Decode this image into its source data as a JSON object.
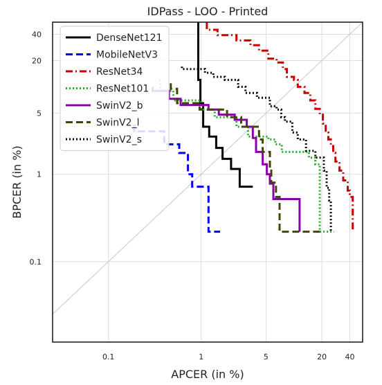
{
  "chart_data": {
    "type": "line",
    "title": "IDPass - LOO - Printed",
    "xlabel": "APCER (in %)",
    "ylabel": "BPCER (in %)",
    "xscale": "log",
    "yscale": "log",
    "xlim": [
      0.025,
      55
    ],
    "ylim": [
      0.012,
      55
    ],
    "xticks": [
      0.1,
      1,
      5,
      20,
      40
    ],
    "xtick_labels": [
      "0.1",
      "1",
      "5",
      "20",
      "40"
    ],
    "yticks": [
      0.1,
      1,
      5,
      20,
      40
    ],
    "ytick_labels": [
      "0.1",
      "1",
      "5",
      "20",
      "40"
    ],
    "grid": true,
    "diagonal_reference": true,
    "legend": "top-left",
    "series": [
      {
        "name": "DenseNet121",
        "color": "#000000",
        "dash": "solid",
        "points": [
          [
            0.93,
            55
          ],
          [
            0.93,
            20
          ],
          [
            0.93,
            12
          ],
          [
            0.98,
            12
          ],
          [
            0.98,
            6.5
          ],
          [
            1.05,
            6.5
          ],
          [
            1.05,
            3.5
          ],
          [
            1.22,
            3.5
          ],
          [
            1.22,
            2.7
          ],
          [
            1.45,
            2.7
          ],
          [
            1.45,
            2.0
          ],
          [
            1.7,
            2.0
          ],
          [
            1.7,
            1.5
          ],
          [
            2.1,
            1.5
          ],
          [
            2.1,
            1.15
          ],
          [
            2.6,
            1.15
          ],
          [
            2.6,
            0.72
          ],
          [
            3.6,
            0.72
          ]
        ]
      },
      {
        "name": "MobileNetV3",
        "color": "#0000ee",
        "dash": "dashed",
        "points": [
          [
            0.19,
            3.7
          ],
          [
            0.19,
            3.1
          ],
          [
            0.4,
            3.1
          ],
          [
            0.4,
            2.2
          ],
          [
            0.58,
            2.2
          ],
          [
            0.58,
            1.75
          ],
          [
            0.72,
            1.75
          ],
          [
            0.72,
            1.0
          ],
          [
            0.8,
            1.0
          ],
          [
            0.8,
            0.72
          ],
          [
            1.2,
            0.72
          ],
          [
            1.2,
            0.22
          ],
          [
            1.6,
            0.22
          ]
        ]
      },
      {
        "name": "ResNet34",
        "color": "#cc0000",
        "dash": "dashdot",
        "points": [
          [
            1.15,
            55
          ],
          [
            1.15,
            45
          ],
          [
            1.5,
            45
          ],
          [
            1.5,
            39
          ],
          [
            2.4,
            39
          ],
          [
            2.4,
            34
          ],
          [
            3.4,
            34
          ],
          [
            3.4,
            30
          ],
          [
            4.2,
            30
          ],
          [
            4.2,
            26
          ],
          [
            5.3,
            26
          ],
          [
            5.3,
            21
          ],
          [
            6.5,
            21
          ],
          [
            6.5,
            19
          ],
          [
            7.6,
            19
          ],
          [
            7.6,
            16
          ],
          [
            8.4,
            16
          ],
          [
            8.4,
            13
          ],
          [
            10,
            13
          ],
          [
            10,
            12
          ],
          [
            11,
            12
          ],
          [
            11,
            10
          ],
          [
            13,
            10
          ],
          [
            13,
            8.5
          ],
          [
            15,
            8.5
          ],
          [
            15,
            7
          ],
          [
            17,
            7
          ],
          [
            17,
            5.6
          ],
          [
            19,
            5.6
          ],
          [
            19,
            4.8
          ],
          [
            20.5,
            4.8
          ],
          [
            20.5,
            3.8
          ],
          [
            22,
            3.8
          ],
          [
            22,
            3.0
          ],
          [
            23.5,
            3.0
          ],
          [
            23.5,
            2.5
          ],
          [
            25,
            2.5
          ],
          [
            25,
            2.1
          ],
          [
            26.5,
            2.1
          ],
          [
            26.5,
            1.75
          ],
          [
            28,
            1.75
          ],
          [
            28,
            1.4
          ],
          [
            31,
            1.4
          ],
          [
            31,
            1.1
          ],
          [
            34,
            1.1
          ],
          [
            34,
            0.85
          ],
          [
            38,
            0.85
          ],
          [
            38,
            0.65
          ],
          [
            40,
            0.65
          ],
          [
            40,
            0.55
          ],
          [
            43,
            0.55
          ],
          [
            43,
            0.22
          ]
        ]
      },
      {
        "name": "ResNet101",
        "color": "#22aa22",
        "dash": "dotted",
        "points": [
          [
            0.36,
            12
          ],
          [
            0.36,
            9
          ],
          [
            0.5,
            9
          ],
          [
            0.5,
            7
          ],
          [
            1.0,
            7
          ],
          [
            1.0,
            5.5
          ],
          [
            1.4,
            5.5
          ],
          [
            1.4,
            4.5
          ],
          [
            2.4,
            4.5
          ],
          [
            2.4,
            3.5
          ],
          [
            3.2,
            3.5
          ],
          [
            3.2,
            2.7
          ],
          [
            5.3,
            2.7
          ],
          [
            5.3,
            2.5
          ],
          [
            6.3,
            2.5
          ],
          [
            6.3,
            2.2
          ],
          [
            7.4,
            2.2
          ],
          [
            7.4,
            1.8
          ],
          [
            14.5,
            1.8
          ],
          [
            14.5,
            1.55
          ],
          [
            17,
            1.55
          ],
          [
            17,
            1.3
          ],
          [
            19,
            1.3
          ],
          [
            19,
            0.22
          ],
          [
            27,
            0.22
          ]
        ]
      },
      {
        "name": "SwinV2_b",
        "color": "#8800aa",
        "dash": "solid",
        "points": [
          [
            0.3,
            10
          ],
          [
            0.3,
            9
          ],
          [
            0.45,
            9
          ],
          [
            0.45,
            7.3
          ],
          [
            0.6,
            7.3
          ],
          [
            0.6,
            6.2
          ],
          [
            1.2,
            6.2
          ],
          [
            1.2,
            5.5
          ],
          [
            1.55,
            5.5
          ],
          [
            1.55,
            4.8
          ],
          [
            2.3,
            4.8
          ],
          [
            2.3,
            4.2
          ],
          [
            3.1,
            4.2
          ],
          [
            3.1,
            3.5
          ],
          [
            3.6,
            3.5
          ],
          [
            3.6,
            2.6
          ],
          [
            3.9,
            2.6
          ],
          [
            3.9,
            1.8
          ],
          [
            4.6,
            1.8
          ],
          [
            4.6,
            1.3
          ],
          [
            5.1,
            1.3
          ],
          [
            5.1,
            1.0
          ],
          [
            5.5,
            1.0
          ],
          [
            5.5,
            0.78
          ],
          [
            6.0,
            0.78
          ],
          [
            6.0,
            0.52
          ],
          [
            11.5,
            0.52
          ],
          [
            11.5,
            0.22
          ]
        ]
      },
      {
        "name": "SwinV2_l",
        "color": "#444400",
        "dash": "dashed",
        "points": [
          [
            0.47,
            11
          ],
          [
            0.47,
            9.5
          ],
          [
            0.55,
            9.5
          ],
          [
            0.55,
            6.5
          ],
          [
            0.96,
            6.5
          ],
          [
            0.96,
            5.5
          ],
          [
            1.9,
            5.5
          ],
          [
            1.9,
            4.5
          ],
          [
            2.7,
            4.5
          ],
          [
            2.7,
            3.5
          ],
          [
            4.2,
            3.5
          ],
          [
            4.2,
            2.5
          ],
          [
            4.6,
            2.5
          ],
          [
            4.6,
            1.8
          ],
          [
            5.5,
            1.8
          ],
          [
            5.5,
            1.1
          ],
          [
            5.7,
            1.1
          ],
          [
            5.7,
            0.8
          ],
          [
            6.4,
            0.8
          ],
          [
            6.4,
            0.55
          ],
          [
            7.0,
            0.55
          ],
          [
            7.0,
            0.22
          ],
          [
            19,
            0.22
          ]
        ]
      },
      {
        "name": "SwinV2_s",
        "color": "#000000",
        "dash": "dotted",
        "points": [
          [
            0.62,
            17
          ],
          [
            0.62,
            16
          ],
          [
            1.1,
            16
          ],
          [
            1.1,
            14.5
          ],
          [
            1.35,
            14.5
          ],
          [
            1.35,
            13
          ],
          [
            1.8,
            13
          ],
          [
            1.8,
            12
          ],
          [
            2.5,
            12
          ],
          [
            2.5,
            10
          ],
          [
            3.0,
            10
          ],
          [
            3.0,
            8.5
          ],
          [
            4.0,
            8.5
          ],
          [
            4.0,
            7.5
          ],
          [
            5.5,
            7.5
          ],
          [
            5.5,
            6
          ],
          [
            6.5,
            6
          ],
          [
            6.5,
            5.5
          ],
          [
            7.3,
            5.5
          ],
          [
            7.3,
            4.5
          ],
          [
            8.0,
            4.5
          ],
          [
            8.0,
            4.0
          ],
          [
            9.6,
            4.0
          ],
          [
            9.6,
            3.0
          ],
          [
            11,
            3.0
          ],
          [
            11,
            2.5
          ],
          [
            13.5,
            2.5
          ],
          [
            13.5,
            1.85
          ],
          [
            17,
            1.85
          ],
          [
            17,
            1.55
          ],
          [
            21,
            1.55
          ],
          [
            21,
            1.1
          ],
          [
            22.5,
            1.1
          ],
          [
            22.5,
            0.7
          ],
          [
            24,
            0.7
          ],
          [
            24,
            0.5
          ],
          [
            25,
            0.5
          ],
          [
            25,
            0.22
          ]
        ]
      }
    ]
  }
}
